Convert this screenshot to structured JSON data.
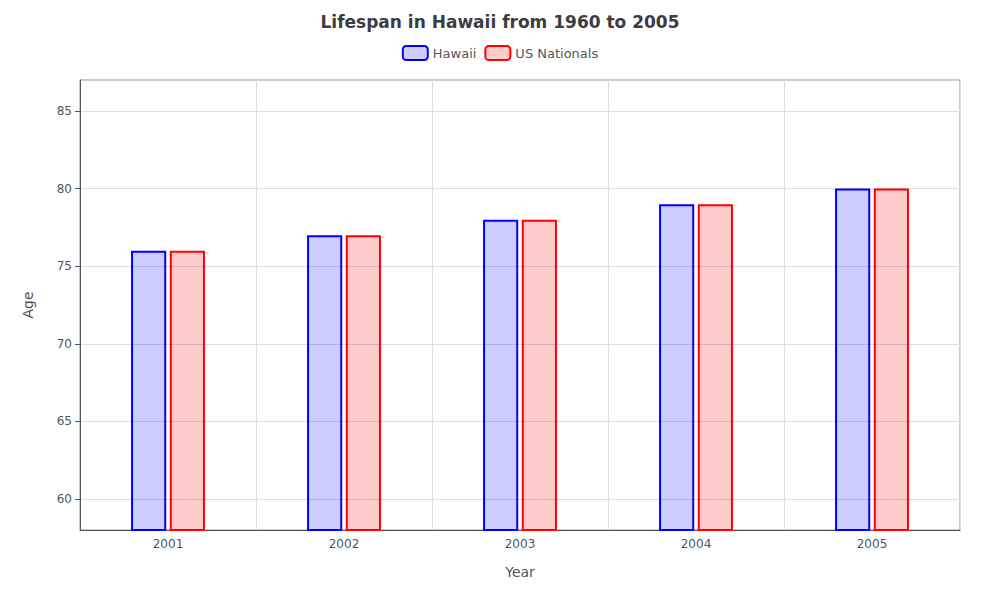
{
  "chart_data": {
    "type": "bar",
    "title": "Lifespan in Hawaii from 1960 to 2005",
    "xlabel": "Year",
    "ylabel": "Age",
    "categories": [
      "2001",
      "2002",
      "2003",
      "2004",
      "2005"
    ],
    "series": [
      {
        "name": "Hawaii",
        "color": "#0000ff",
        "values": [
          76,
          77,
          78,
          79,
          80
        ]
      },
      {
        "name": "US Nationals",
        "color": "#ff0000",
        "values": [
          76,
          77,
          78,
          79,
          80
        ]
      }
    ],
    "ylim": [
      58,
      87
    ],
    "yticks": [
      60,
      65,
      70,
      75,
      80,
      85
    ],
    "grid": true,
    "legend": "top"
  }
}
